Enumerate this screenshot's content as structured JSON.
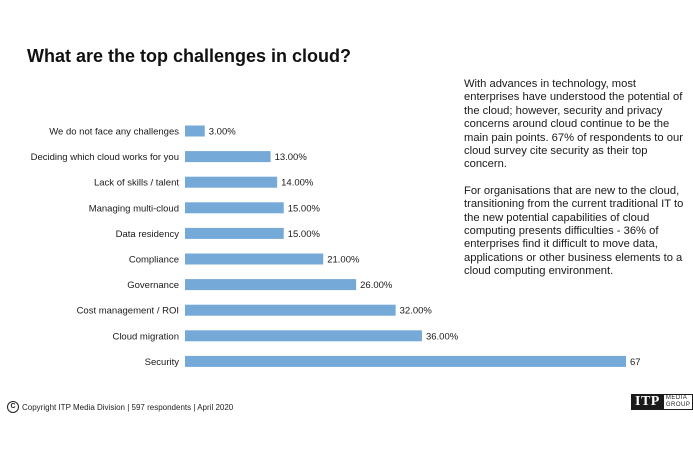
{
  "title": "What are the top challenges in cloud?",
  "chart_data": {
    "type": "bar",
    "orientation": "horizontal",
    "categories": [
      "We do not face any challenges",
      "Deciding which cloud works for you",
      "Lack of skills / talent",
      "Managing multi-cloud",
      "Data residency",
      "Compliance",
      "Governance",
      "Cost management / ROI",
      "Cloud migration",
      "Security"
    ],
    "values": [
      3,
      13,
      14,
      15,
      15,
      21,
      26,
      32,
      36,
      67
    ],
    "value_labels": [
      "3.00%",
      "13.00%",
      "14.00%",
      "15.00%",
      "15.00%",
      "21.00%",
      "26.00%",
      "32.00%",
      "36.00%",
      "67.00%"
    ],
    "xlim": [
      0,
      67
    ],
    "bar_color": "#74a9d8",
    "grid": false,
    "legend": "none"
  },
  "side_text": {
    "paragraph1": "With advances in technology, most enterprises have understood the potential of the cloud; however, security and privacy concerns around cloud continue to be the main pain points. 67% of respondents to our cloud survey cite security as their top concern.",
    "paragraph2": "For organisations that are new to the cloud, transitioning from the current traditional IT to the new potential capabilities of cloud computing presents difficulties - 36% of enterprises find it difficult to move data, applications or other business elements to a cloud computing environment."
  },
  "footer": {
    "copyright_symbol": "C",
    "text": "Copyright ITP Media Division | 597 respondents | April 2020"
  },
  "logo": {
    "main": "ITP",
    "sub_line1": "MEDIA",
    "sub_line2": "GROUP"
  }
}
